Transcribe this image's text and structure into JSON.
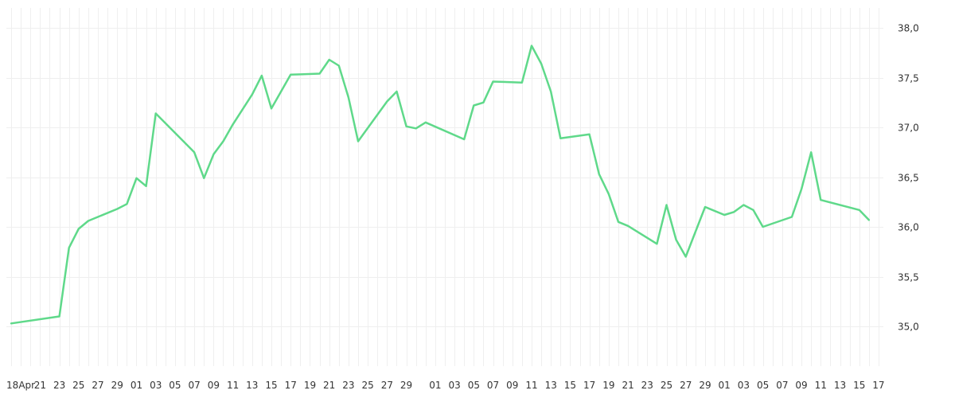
{
  "chart_data": {
    "type": "line",
    "title": "",
    "xlabel": "",
    "ylabel": "",
    "ylim": [
      34.6,
      38.2
    ],
    "y_ticks": [
      "35,0",
      "35,5",
      "36,0",
      "36,5",
      "37,0",
      "37,5",
      "38,0"
    ],
    "y_tick_values": [
      35.0,
      35.5,
      36.0,
      36.5,
      37.0,
      37.5,
      38.0
    ],
    "y_axis_side": "right",
    "grid": true,
    "line_color": "#5fd98a",
    "x_ticks": [
      "18Apr",
      "21",
      "23",
      "25",
      "27",
      "29",
      "01",
      "03",
      "05",
      "07",
      "09",
      "11",
      "13",
      "15",
      "17",
      "19",
      "21",
      "23",
      "25",
      "27",
      "29",
      "01",
      "03",
      "05",
      "07",
      "09",
      "11",
      "13",
      "15",
      "17",
      "19",
      "21",
      "23",
      "25",
      "27",
      "29",
      "01",
      "03",
      "05",
      "07",
      "09",
      "11",
      "13",
      "15",
      "17"
    ],
    "x_tick_pos": [
      0,
      3,
      5,
      7,
      9,
      11,
      13,
      15,
      17,
      19,
      21,
      23,
      25,
      27,
      29,
      31,
      33,
      35,
      37,
      39,
      41,
      44,
      46,
      48,
      50,
      52,
      54,
      56,
      58,
      60,
      62,
      64,
      66,
      68,
      70,
      72,
      74,
      76,
      78,
      80,
      82,
      84,
      86,
      88,
      90
    ],
    "x_extent": [
      -0.5,
      90.5
    ],
    "series": [
      {
        "x": [
          0,
          5,
          6,
          7,
          8,
          11,
          12,
          13,
          14,
          15,
          19,
          20,
          21,
          22,
          23,
          25,
          26,
          27,
          29,
          32,
          33,
          34,
          35,
          36,
          39,
          40,
          41,
          42,
          43,
          47,
          48,
          49,
          50,
          53,
          54,
          55,
          56,
          57,
          60,
          61,
          62,
          63,
          64,
          67,
          68,
          69,
          70,
          72,
          74,
          75,
          76,
          77,
          78,
          81,
          82,
          83,
          84,
          88,
          89
        ],
        "values": [
          35.03,
          35.1,
          35.79,
          35.98,
          36.06,
          36.18,
          36.23,
          36.49,
          36.41,
          37.14,
          36.75,
          36.49,
          36.73,
          36.86,
          37.03,
          37.33,
          37.52,
          37.19,
          37.53,
          37.54,
          37.68,
          37.62,
          37.3,
          36.86,
          37.26,
          37.36,
          37.01,
          36.99,
          37.05,
          36.88,
          37.22,
          37.25,
          37.46,
          37.45,
          37.82,
          37.64,
          37.36,
          36.89,
          36.93,
          36.53,
          36.33,
          36.05,
          36.01,
          35.83,
          36.22,
          35.87,
          35.7,
          36.2,
          36.12,
          36.15,
          36.22,
          36.17,
          36.0,
          36.1,
          36.38,
          36.75,
          36.27,
          36.17,
          36.07
        ]
      }
    ]
  }
}
